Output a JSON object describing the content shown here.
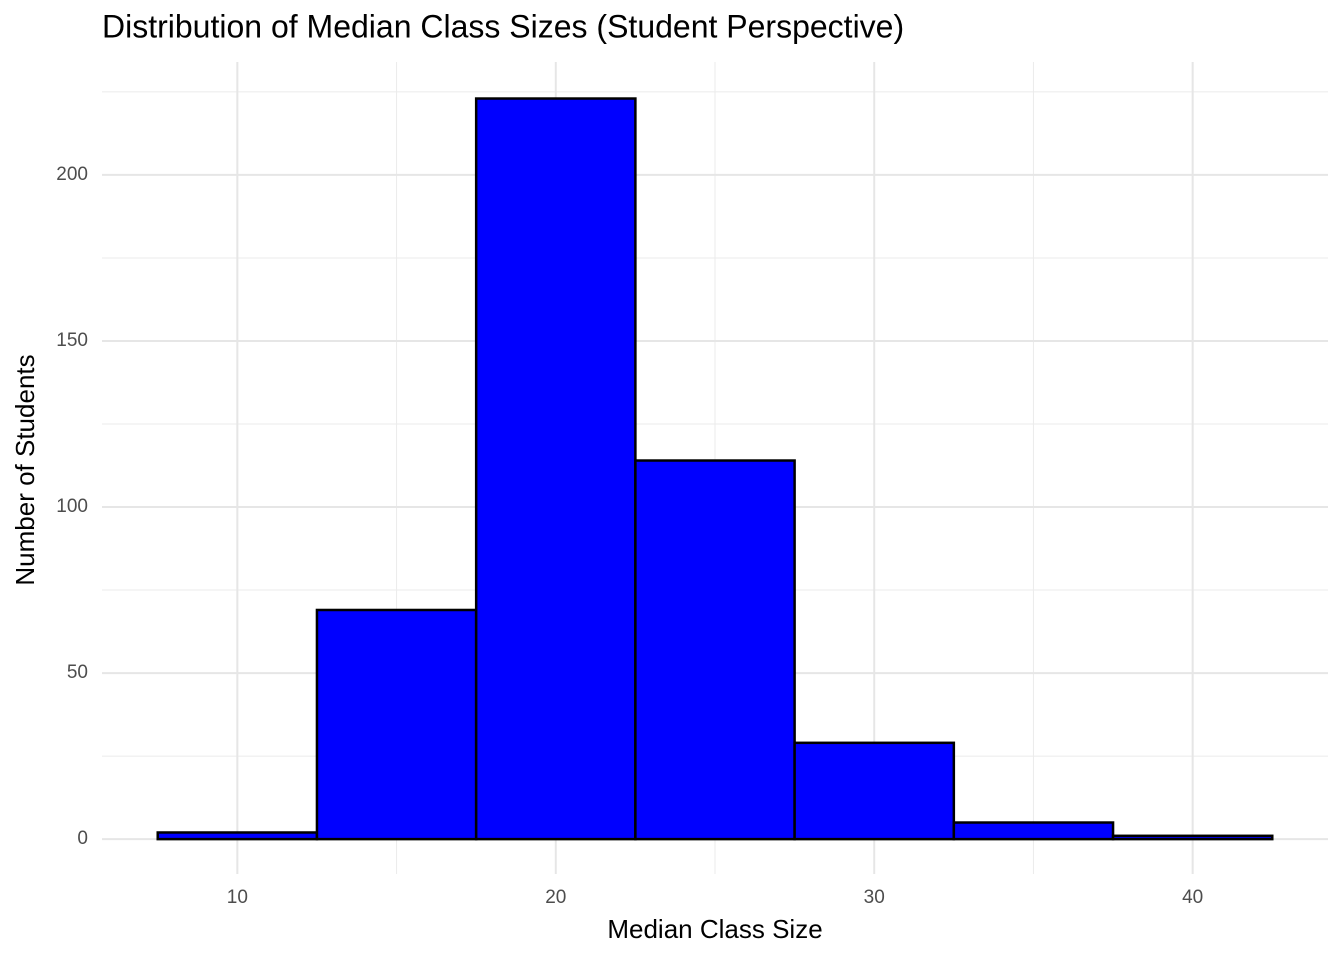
{
  "chart_data": {
    "type": "histogram",
    "title": "Distribution of Median Class Sizes (Student Perspective)",
    "x_label": "Median Class Size",
    "y_label": "Number of Students",
    "bins": [
      7.5,
      12.5,
      17.5,
      22.5,
      27.5,
      32.5,
      37.5,
      42.5
    ],
    "values": [
      2,
      69,
      223,
      114,
      29,
      5,
      1
    ],
    "color": "#0000ff",
    "edgecolor": "#000000",
    "xlim": [
      5.75,
      44.25
    ],
    "xticks": [
      10,
      20,
      30,
      40
    ],
    "xminorticks": [
      15,
      25,
      35
    ],
    "ylim": [
      -10.5,
      234
    ],
    "yticks": [
      0,
      50,
      100,
      150,
      200
    ],
    "yminorticks": [
      25,
      75,
      125,
      175,
      225
    ],
    "grid": true
  }
}
